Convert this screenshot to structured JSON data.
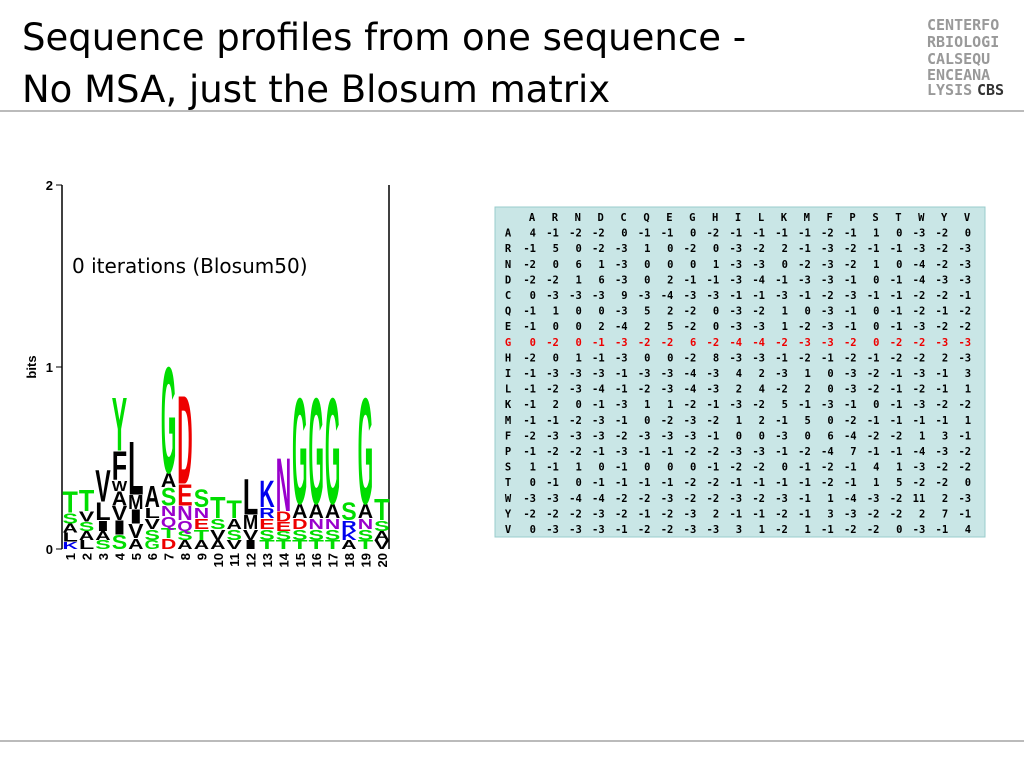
{
  "header": {
    "title_lines": [
      "Sequence profiles from one sequence -",
      "No MSA, just the Blosum matrix"
    ],
    "logo_lines": [
      "CENTERFO",
      "RBIOLOGI",
      "CALSEQU",
      "ENCEANA",
      "LYSIS"
    ],
    "logo_mark": "CBS"
  },
  "logo": {
    "type": "sequence-logo",
    "annotation": "0 iterations (Blosum50)",
    "ylabel": "bits",
    "ylim": [
      0,
      2
    ],
    "yticks": [
      0,
      1,
      2
    ],
    "categories": [
      "1",
      "2",
      "3",
      "4",
      "5",
      "6",
      "7",
      "8",
      "9",
      "10",
      "11",
      "12",
      "13",
      "14",
      "15",
      "16",
      "17",
      "18",
      "19",
      "20"
    ],
    "letter_colors": {
      "G": "#00dd00",
      "S": "#00dd00",
      "T": "#00dd00",
      "Y": "#00dd00",
      "C": "#00dd00",
      "N": "#9900cc",
      "Q": "#9900cc",
      "K": "#0000ee",
      "R": "#0000ee",
      "H": "#0000ee",
      "D": "#ee0000",
      "E": "#ee0000",
      "A": "#000000",
      "V": "#000000",
      "L": "#000000",
      "I": "#000000",
      "P": "#000000",
      "W": "#000000",
      "F": "#000000",
      "M": "#000000"
    },
    "stacks": [
      [
        {
          "letter": "K",
          "bits": 0.04
        },
        {
          "letter": "L",
          "bits": 0.05
        },
        {
          "letter": "A",
          "bits": 0.05
        },
        {
          "letter": "S",
          "bits": 0.06
        },
        {
          "letter": "T",
          "bits": 0.12
        }
      ],
      [
        {
          "letter": "L",
          "bits": 0.05
        },
        {
          "letter": "A",
          "bits": 0.05
        },
        {
          "letter": "S",
          "bits": 0.05
        },
        {
          "letter": "V",
          "bits": 0.06
        },
        {
          "letter": "T",
          "bits": 0.12
        }
      ],
      [
        {
          "letter": "S",
          "bits": 0.05
        },
        {
          "letter": "A",
          "bits": 0.05
        },
        {
          "letter": "I",
          "bits": 0.06
        },
        {
          "letter": "L",
          "bits": 0.1
        },
        {
          "letter": "V",
          "bits": 0.18
        }
      ],
      [
        {
          "letter": "S",
          "bits": 0.08
        },
        {
          "letter": "I",
          "bits": 0.08
        },
        {
          "letter": "V",
          "bits": 0.08
        },
        {
          "letter": "A",
          "bits": 0.08
        },
        {
          "letter": "W",
          "bits": 0.06
        },
        {
          "letter": "F",
          "bits": 0.16
        },
        {
          "letter": "Y",
          "bits": 0.3
        }
      ],
      [
        {
          "letter": "A",
          "bits": 0.06
        },
        {
          "letter": "V",
          "bits": 0.08
        },
        {
          "letter": "I",
          "bits": 0.08
        },
        {
          "letter": "M",
          "bits": 0.08
        },
        {
          "letter": "L",
          "bits": 0.3
        }
      ],
      [
        {
          "letter": "G",
          "bits": 0.05
        },
        {
          "letter": "S",
          "bits": 0.06
        },
        {
          "letter": "V",
          "bits": 0.06
        },
        {
          "letter": "L",
          "bits": 0.06
        },
        {
          "letter": "A",
          "bits": 0.12
        }
      ],
      [
        {
          "letter": "D",
          "bits": 0.06
        },
        {
          "letter": "T",
          "bits": 0.06
        },
        {
          "letter": "Q",
          "bits": 0.06
        },
        {
          "letter": "N",
          "bits": 0.06
        },
        {
          "letter": "S",
          "bits": 0.1
        },
        {
          "letter": "A",
          "bits": 0.08
        },
        {
          "letter": "G",
          "bits": 0.6
        }
      ],
      [
        {
          "letter": "A",
          "bits": 0.05
        },
        {
          "letter": "S",
          "bits": 0.05
        },
        {
          "letter": "Q",
          "bits": 0.06
        },
        {
          "letter": "N",
          "bits": 0.08
        },
        {
          "letter": "E",
          "bits": 0.12
        },
        {
          "letter": "D",
          "bits": 0.5
        }
      ],
      [
        {
          "letter": "A",
          "bits": 0.05
        },
        {
          "letter": "T",
          "bits": 0.06
        },
        {
          "letter": "E",
          "bits": 0.06
        },
        {
          "letter": "N",
          "bits": 0.06
        },
        {
          "letter": "S",
          "bits": 0.1
        }
      ],
      [
        {
          "letter": "A",
          "bits": 0.05
        },
        {
          "letter": "V",
          "bits": 0.06
        },
        {
          "letter": "S",
          "bits": 0.06
        },
        {
          "letter": "T",
          "bits": 0.12
        }
      ],
      [
        {
          "letter": "V",
          "bits": 0.05
        },
        {
          "letter": "S",
          "bits": 0.06
        },
        {
          "letter": "A",
          "bits": 0.06
        },
        {
          "letter": "T",
          "bits": 0.1
        }
      ],
      [
        {
          "letter": "I",
          "bits": 0.05
        },
        {
          "letter": "V",
          "bits": 0.06
        },
        {
          "letter": "M",
          "bits": 0.08
        },
        {
          "letter": "L",
          "bits": 0.2
        }
      ],
      [
        {
          "letter": "T",
          "bits": 0.05
        },
        {
          "letter": "S",
          "bits": 0.06
        },
        {
          "letter": "E",
          "bits": 0.06
        },
        {
          "letter": "R",
          "bits": 0.06
        },
        {
          "letter": "K",
          "bits": 0.15
        }
      ],
      [
        {
          "letter": "T",
          "bits": 0.05
        },
        {
          "letter": "S",
          "bits": 0.05
        },
        {
          "letter": "E",
          "bits": 0.05
        },
        {
          "letter": "D",
          "bits": 0.06
        },
        {
          "letter": "N",
          "bits": 0.3
        }
      ],
      [
        {
          "letter": "T",
          "bits": 0.05
        },
        {
          "letter": "S",
          "bits": 0.06
        },
        {
          "letter": "D",
          "bits": 0.06
        },
        {
          "letter": "A",
          "bits": 0.08
        },
        {
          "letter": "G",
          "bits": 0.6
        }
      ],
      [
        {
          "letter": "T",
          "bits": 0.05
        },
        {
          "letter": "S",
          "bits": 0.06
        },
        {
          "letter": "N",
          "bits": 0.06
        },
        {
          "letter": "A",
          "bits": 0.08
        },
        {
          "letter": "G",
          "bits": 0.6
        }
      ],
      [
        {
          "letter": "T",
          "bits": 0.05
        },
        {
          "letter": "S",
          "bits": 0.06
        },
        {
          "letter": "N",
          "bits": 0.06
        },
        {
          "letter": "A",
          "bits": 0.08
        },
        {
          "letter": "G",
          "bits": 0.6
        }
      ],
      [
        {
          "letter": "A",
          "bits": 0.05
        },
        {
          "letter": "K",
          "bits": 0.05
        },
        {
          "letter": "R",
          "bits": 0.06
        },
        {
          "letter": "S",
          "bits": 0.1
        }
      ],
      [
        {
          "letter": "T",
          "bits": 0.05
        },
        {
          "letter": "S",
          "bits": 0.06
        },
        {
          "letter": "N",
          "bits": 0.06
        },
        {
          "letter": "A",
          "bits": 0.08
        },
        {
          "letter": "G",
          "bits": 0.6
        }
      ],
      [
        {
          "letter": "V",
          "bits": 0.05
        },
        {
          "letter": "A",
          "bits": 0.05
        },
        {
          "letter": "S",
          "bits": 0.06
        },
        {
          "letter": "T",
          "bits": 0.12
        }
      ]
    ]
  },
  "matrix": {
    "highlight_row_index": 7,
    "highlight_color": "#ee0000",
    "columns": [
      "A",
      "R",
      "N",
      "D",
      "C",
      "Q",
      "E",
      "G",
      "H",
      "I",
      "L",
      "K",
      "M",
      "F",
      "P",
      "S",
      "T",
      "W",
      "Y",
      "V"
    ],
    "rows": [
      {
        "label": "A",
        "values": [
          4,
          -1,
          -2,
          -2,
          0,
          -1,
          -1,
          0,
          -2,
          -1,
          -1,
          -1,
          -1,
          -2,
          -1,
          1,
          0,
          -3,
          -2,
          0
        ]
      },
      {
        "label": "R",
        "values": [
          -1,
          5,
          0,
          -2,
          -3,
          1,
          0,
          -2,
          0,
          -3,
          -2,
          2,
          -1,
          -3,
          -2,
          -1,
          -1,
          -3,
          -2,
          -3
        ]
      },
      {
        "label": "N",
        "values": [
          -2,
          0,
          6,
          1,
          -3,
          0,
          0,
          0,
          1,
          -3,
          -3,
          0,
          -2,
          -3,
          -2,
          1,
          0,
          -4,
          -2,
          -3
        ]
      },
      {
        "label": "D",
        "values": [
          -2,
          -2,
          1,
          6,
          -3,
          0,
          2,
          -1,
          -1,
          -3,
          -4,
          -1,
          -3,
          -3,
          -1,
          0,
          -1,
          -4,
          -3,
          -3
        ]
      },
      {
        "label": "C",
        "values": [
          0,
          -3,
          -3,
          -3,
          9,
          -3,
          -4,
          -3,
          -3,
          -1,
          -1,
          -3,
          -1,
          -2,
          -3,
          -1,
          -1,
          -2,
          -2,
          -1
        ]
      },
      {
        "label": "Q",
        "values": [
          -1,
          1,
          0,
          0,
          -3,
          5,
          2,
          -2,
          0,
          -3,
          -2,
          1,
          0,
          -3,
          -1,
          0,
          -1,
          -2,
          -1,
          -2
        ]
      },
      {
        "label": "E",
        "values": [
          -1,
          0,
          0,
          2,
          -4,
          2,
          5,
          -2,
          0,
          -3,
          -3,
          1,
          -2,
          -3,
          -1,
          0,
          -1,
          -3,
          -2,
          -2
        ]
      },
      {
        "label": "G",
        "values": [
          0,
          -2,
          0,
          -1,
          -3,
          -2,
          -2,
          6,
          -2,
          -4,
          -4,
          -2,
          -3,
          -3,
          -2,
          0,
          -2,
          -2,
          -3,
          -3
        ]
      },
      {
        "label": "H",
        "values": [
          -2,
          0,
          1,
          -1,
          -3,
          0,
          0,
          -2,
          8,
          -3,
          -3,
          -1,
          -2,
          -1,
          -2,
          -1,
          -2,
          -2,
          2,
          -3
        ]
      },
      {
        "label": "I",
        "values": [
          -1,
          -3,
          -3,
          -3,
          -1,
          -3,
          -3,
          -4,
          -3,
          4,
          2,
          -3,
          1,
          0,
          -3,
          -2,
          -1,
          -3,
          -1,
          3
        ]
      },
      {
        "label": "L",
        "values": [
          -1,
          -2,
          -3,
          -4,
          -1,
          -2,
          -3,
          -4,
          -3,
          2,
          4,
          -2,
          2,
          0,
          -3,
          -2,
          -1,
          -2,
          -1,
          1
        ]
      },
      {
        "label": "K",
        "values": [
          -1,
          2,
          0,
          -1,
          -3,
          1,
          1,
          -2,
          -1,
          -3,
          -2,
          5,
          -1,
          -3,
          -1,
          0,
          -1,
          -3,
          -2,
          -2
        ]
      },
      {
        "label": "M",
        "values": [
          -1,
          -1,
          -2,
          -3,
          -1,
          0,
          -2,
          -3,
          -2,
          1,
          2,
          -1,
          5,
          0,
          -2,
          -1,
          -1,
          -1,
          -1,
          1
        ]
      },
      {
        "label": "F",
        "values": [
          -2,
          -3,
          -3,
          -3,
          -2,
          -3,
          -3,
          -3,
          -1,
          0,
          0,
          -3,
          0,
          6,
          -4,
          -2,
          -2,
          1,
          3,
          -1
        ]
      },
      {
        "label": "P",
        "values": [
          -1,
          -2,
          -2,
          -1,
          -3,
          -1,
          -1,
          -2,
          -2,
          -3,
          -3,
          -1,
          -2,
          -4,
          7,
          -1,
          -1,
          -4,
          -3,
          -2
        ]
      },
      {
        "label": "S",
        "values": [
          1,
          -1,
          1,
          0,
          -1,
          0,
          0,
          0,
          -1,
          -2,
          -2,
          0,
          -1,
          -2,
          -1,
          4,
          1,
          -3,
          -2,
          -2
        ]
      },
      {
        "label": "T",
        "values": [
          0,
          -1,
          0,
          -1,
          -1,
          -1,
          -1,
          -2,
          -2,
          -1,
          -1,
          -1,
          -1,
          -2,
          -1,
          1,
          5,
          -2,
          -2,
          0
        ]
      },
      {
        "label": "W",
        "values": [
          -3,
          -3,
          -4,
          -4,
          -2,
          -2,
          -3,
          -2,
          -2,
          -3,
          -2,
          -3,
          -1,
          1,
          -4,
          -3,
          -2,
          11,
          2,
          -3
        ]
      },
      {
        "label": "Y",
        "values": [
          -2,
          -2,
          -2,
          -3,
          -2,
          -1,
          -2,
          -3,
          2,
          -1,
          -1,
          -2,
          -1,
          3,
          -3,
          -2,
          -2,
          2,
          7,
          -1
        ]
      },
      {
        "label": "V",
        "values": [
          0,
          -3,
          -3,
          -3,
          -1,
          -2,
          -2,
          -3,
          -3,
          3,
          1,
          -2,
          1,
          -1,
          -2,
          -2,
          0,
          -3,
          -1,
          4
        ]
      }
    ]
  }
}
